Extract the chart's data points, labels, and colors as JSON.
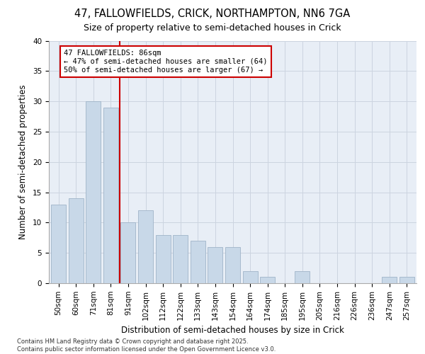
{
  "title_line1": "47, FALLOWFIELDS, CRICK, NORTHAMPTON, NN6 7GA",
  "title_line2": "Size of property relative to semi-detached houses in Crick",
  "xlabel": "Distribution of semi-detached houses by size in Crick",
  "ylabel": "Number of semi-detached properties",
  "categories": [
    "50sqm",
    "60sqm",
    "71sqm",
    "81sqm",
    "91sqm",
    "102sqm",
    "112sqm",
    "122sqm",
    "133sqm",
    "143sqm",
    "154sqm",
    "164sqm",
    "174sqm",
    "185sqm",
    "195sqm",
    "205sqm",
    "216sqm",
    "226sqm",
    "236sqm",
    "247sqm",
    "257sqm"
  ],
  "values": [
    13,
    14,
    30,
    29,
    10,
    12,
    8,
    8,
    7,
    6,
    6,
    2,
    1,
    0,
    2,
    0,
    0,
    0,
    0,
    1,
    1
  ],
  "bar_color": "#c8d8e8",
  "bar_edgecolor": "#a0b4c8",
  "grid_color": "#ccd4e0",
  "background_color": "#e8eef6",
  "vline_x": 3.5,
  "vline_color": "#cc0000",
  "annotation_text": "47 FALLOWFIELDS: 86sqm\n← 47% of semi-detached houses are smaller (64)\n50% of semi-detached houses are larger (67) →",
  "annotation_box_edgecolor": "#cc0000",
  "ylim": [
    0,
    40
  ],
  "yticks": [
    0,
    5,
    10,
    15,
    20,
    25,
    30,
    35,
    40
  ],
  "footer_text": "Contains HM Land Registry data © Crown copyright and database right 2025.\nContains public sector information licensed under the Open Government Licence v3.0.",
  "title_fontsize": 10.5,
  "subtitle_fontsize": 9,
  "axis_label_fontsize": 8.5,
  "tick_fontsize": 7.5,
  "annotation_fontsize": 7.5,
  "footer_fontsize": 6.0
}
